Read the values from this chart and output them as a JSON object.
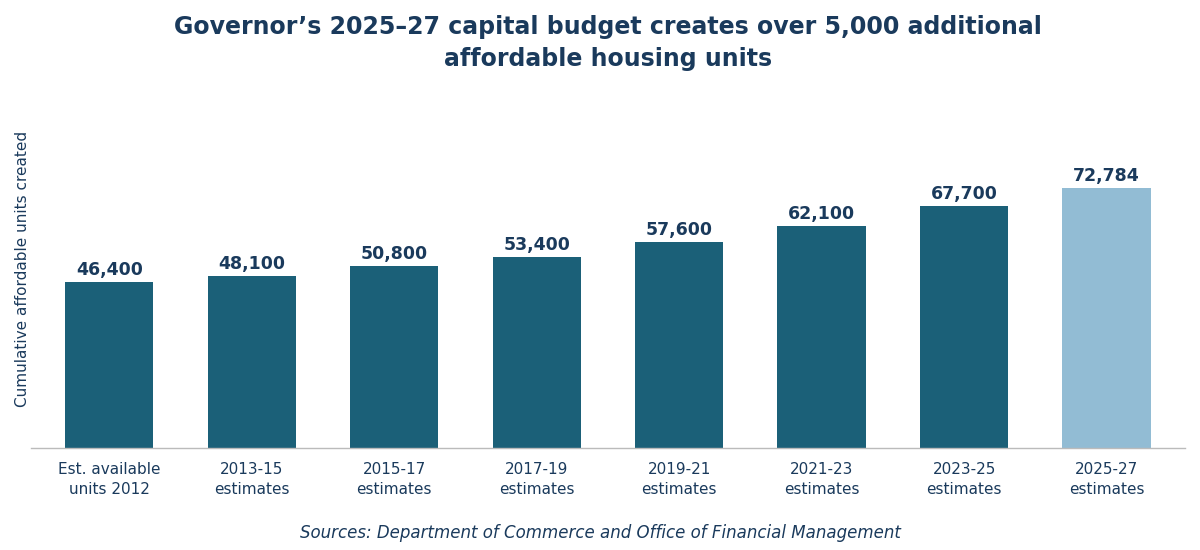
{
  "title": "Governor’s 2025–27 capital budget creates over 5,000 additional\naffordable housing units",
  "ylabel": "Cumulative affordable units created",
  "source_text": "Sources: Department of Commerce and Office of Financial Management",
  "categories": [
    "Est. available\nunits 2012",
    "2013-15\nestimates",
    "2015-17\nestimates",
    "2017-19\nestimates",
    "2019-21\nestimates",
    "2021-23\nestimates",
    "2023-25\nestimates",
    "2025-27\nestimates"
  ],
  "values": [
    46400,
    48100,
    50800,
    53400,
    57600,
    62100,
    67700,
    72784
  ],
  "labels": [
    "46,400",
    "48,100",
    "50,800",
    "53,400",
    "57,600",
    "62,100",
    "67,700",
    "72,784"
  ],
  "bar_colors": [
    "#1b6078",
    "#1b6078",
    "#1b6078",
    "#1b6078",
    "#1b6078",
    "#1b6078",
    "#1b6078",
    "#92bcd4"
  ],
  "title_color": "#1a3a5c",
  "label_color": "#1a3a5c",
  "ylabel_color": "#1a3a5c",
  "xtick_color": "#1a3a5c",
  "source_color": "#1a3a5c",
  "background_color": "#ffffff",
  "ylim": [
    0,
    100000
  ],
  "title_fontsize": 17,
  "label_fontsize": 12.5,
  "ylabel_fontsize": 11,
  "xtick_fontsize": 11,
  "source_fontsize": 12,
  "bar_width": 0.62
}
